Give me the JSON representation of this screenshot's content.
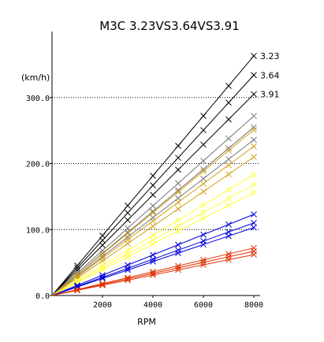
{
  "chart_data": {
    "type": "line",
    "title": "M3C 3.23VS3.64VS3.91",
    "xlabel": "RPM",
    "ylabel": "(km/h)",
    "xlim": [
      0,
      8250
    ],
    "ylim": [
      0,
      400
    ],
    "x_ticks": [
      "2000",
      "4000",
      "6000",
      "8000"
    ],
    "y_ticks": [
      "0.0",
      "100.0",
      "200.0",
      "300.0"
    ],
    "x_tick_values": [
      2000,
      4000,
      6000,
      8000
    ],
    "y_tick_values": [
      0,
      100,
      200,
      300
    ],
    "grid": {
      "x": false,
      "y": true,
      "style": "dotted"
    },
    "marker_rpm": [
      1000,
      2000,
      3000,
      4000,
      5000,
      6000,
      7000,
      8000
    ],
    "gear_groups": [
      {
        "label": "3.23",
        "color": "#000000",
        "top_speeds": [
          363,
          334,
          305
        ]
      },
      {
        "label": "3.64",
        "color": "#777777",
        "top_speeds": [
          272,
          255,
          236
        ]
      },
      {
        "label": "3.91",
        "color": "#d4a017",
        "top_speeds": [
          251,
          226,
          210
        ]
      },
      {
        "label": "",
        "color": "#ffff40",
        "top_speeds": [
          183,
          168,
          156
        ]
      },
      {
        "label": "",
        "color": "#0000dd",
        "top_speeds": [
          123,
          110,
          103
        ]
      },
      {
        "label": "",
        "color": "#e03000",
        "top_speeds": [
          72,
          67,
          62
        ]
      }
    ],
    "end_labels": [
      "3.23",
      "3.64",
      "3.91"
    ]
  }
}
